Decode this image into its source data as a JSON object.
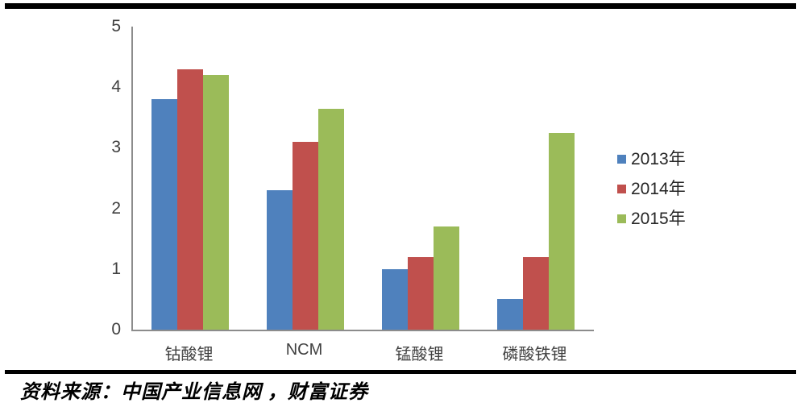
{
  "chart_data": {
    "type": "bar",
    "categories": [
      "钴酸锂",
      "NCM",
      "锰酸锂",
      "磷酸铁锂"
    ],
    "series": [
      {
        "name": "2013年",
        "color": "#4F81BD",
        "values": [
          3.8,
          2.3,
          1.0,
          0.5
        ]
      },
      {
        "name": "2014年",
        "color": "#C0504D",
        "values": [
          4.3,
          3.1,
          1.2,
          1.2
        ]
      },
      {
        "name": "2015年",
        "color": "#9BBB59",
        "values": [
          4.2,
          3.65,
          1.7,
          3.25
        ]
      }
    ],
    "title": "",
    "xlabel": "",
    "ylabel": "",
    "ylim": [
      0,
      5
    ],
    "ytick_step": 1,
    "ytick_labels": [
      "0",
      "1",
      "2",
      "3",
      "4",
      "5"
    ],
    "grid": false,
    "legend_position": "right"
  },
  "footer": {
    "source_note": "资料来源：中国产业信息网 ，财富证券"
  },
  "colors": {
    "axis": "#8C8C8C",
    "tick_text": "#404040",
    "rule": "#000000"
  }
}
